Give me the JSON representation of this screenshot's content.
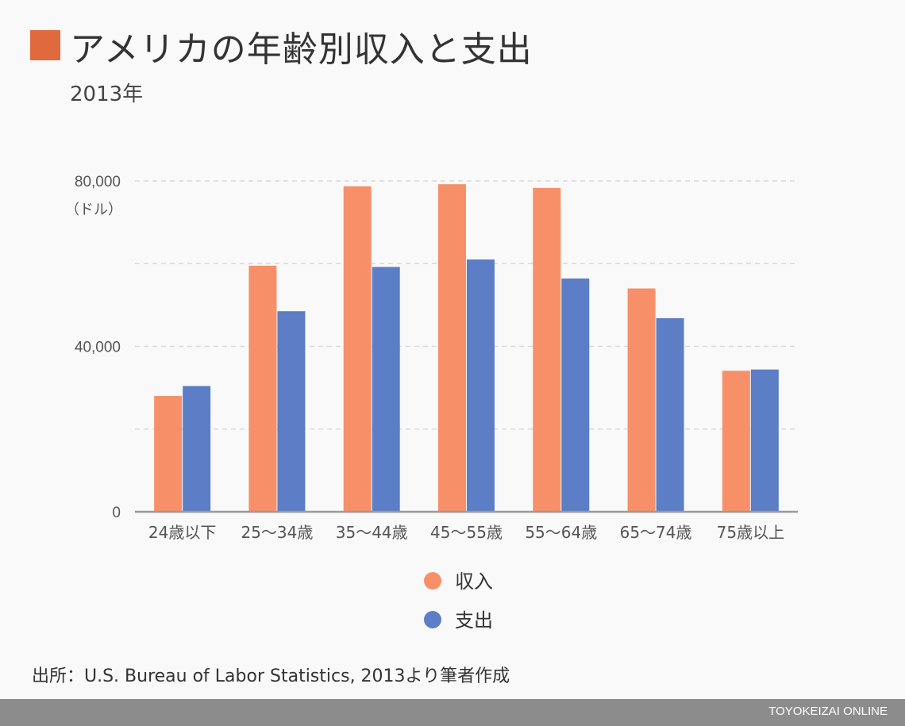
{
  "header": {
    "title": "アメリカの年齢別収入と支出",
    "subtitle": "2013年",
    "accent_color": "#e06a3e"
  },
  "chart_data": {
    "type": "bar",
    "title": "アメリカの年齢別収入と支出",
    "subtitle": "2013年",
    "unit_label": "（ドル）",
    "categories": [
      "24歳以下",
      "25〜34歳",
      "35〜44歳",
      "45〜55歳",
      "55〜64歳",
      "65〜74歳",
      "75歳以上"
    ],
    "series": [
      {
        "name": "収入",
        "color": "#f79068",
        "values": [
          28000,
          59500,
          78700,
          79200,
          78300,
          54000,
          34100
        ]
      },
      {
        "name": "支出",
        "color": "#5b7ec6",
        "values": [
          30400,
          48500,
          59200,
          61000,
          56400,
          46800,
          34400
        ]
      }
    ],
    "yticks": [
      {
        "value": 0,
        "label": "0"
      },
      {
        "value": 40000,
        "label": "40,000"
      },
      {
        "value": 80000,
        "label": "80,000"
      }
    ],
    "gridlines": [
      20000,
      40000,
      60000,
      80000
    ],
    "ylim": [
      0,
      80000
    ],
    "grid": true,
    "legend_position": "bottom-center"
  },
  "footer": {
    "source": "出所：U.S. Bureau of Labor Statistics, 2013より筆者作成",
    "brand": "TOYOKEIZAI ONLINE"
  }
}
